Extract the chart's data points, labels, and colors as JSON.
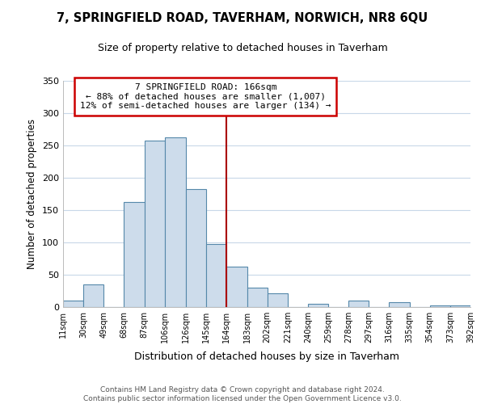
{
  "title": "7, SPRINGFIELD ROAD, TAVERHAM, NORWICH, NR8 6QU",
  "subtitle": "Size of property relative to detached houses in Taverham",
  "xlabel": "Distribution of detached houses by size in Taverham",
  "ylabel": "Number of detached properties",
  "bar_color": "#cddceb",
  "bar_edge_color": "#5588aa",
  "background_color": "#ffffff",
  "grid_color": "#c8d8e8",
  "vline_x": 164,
  "vline_color": "#aa0000",
  "bin_edges": [
    11,
    30,
    49,
    68,
    87,
    106,
    126,
    145,
    164,
    183,
    202,
    221,
    240,
    259,
    278,
    297,
    316,
    335,
    354,
    373,
    392
  ],
  "bar_heights": [
    10,
    35,
    0,
    163,
    258,
    262,
    183,
    97,
    63,
    30,
    21,
    0,
    5,
    0,
    10,
    0,
    7,
    0,
    3,
    2
  ],
  "ylim": [
    0,
    350
  ],
  "yticks": [
    0,
    50,
    100,
    150,
    200,
    250,
    300,
    350
  ],
  "xtick_labels": [
    "11sqm",
    "30sqm",
    "49sqm",
    "68sqm",
    "87sqm",
    "106sqm",
    "126sqm",
    "145sqm",
    "164sqm",
    "183sqm",
    "202sqm",
    "221sqm",
    "240sqm",
    "259sqm",
    "278sqm",
    "297sqm",
    "316sqm",
    "335sqm",
    "354sqm",
    "373sqm",
    "392sqm"
  ],
  "annotation_title": "7 SPRINGFIELD ROAD: 166sqm",
  "annotation_line1": "← 88% of detached houses are smaller (1,007)",
  "annotation_line2": "12% of semi-detached houses are larger (134) →",
  "annotation_box_color": "#ffffff",
  "annotation_box_edge_color": "#cc0000",
  "footer_line1": "Contains HM Land Registry data © Crown copyright and database right 2024.",
  "footer_line2": "Contains public sector information licensed under the Open Government Licence v3.0."
}
